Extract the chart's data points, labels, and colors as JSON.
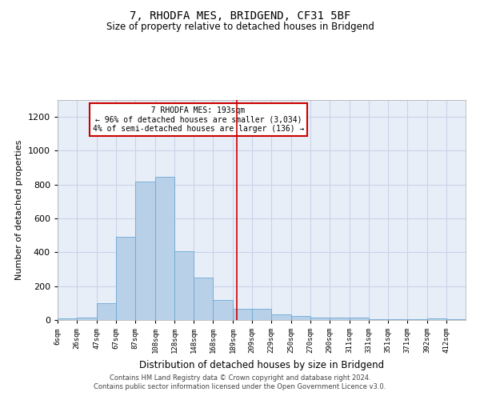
{
  "title": "7, RHODFA MES, BRIDGEND, CF31 5BF",
  "subtitle": "Size of property relative to detached houses in Bridgend",
  "xlabel": "Distribution of detached houses by size in Bridgend",
  "ylabel": "Number of detached properties",
  "footer_line1": "Contains HM Land Registry data © Crown copyright and database right 2024.",
  "footer_line2": "Contains public sector information licensed under the Open Government Licence v3.0.",
  "annotation_line1": "  7 RHODFA MES: 193sqm  ",
  "annotation_line2": "← 96% of detached houses are smaller (3,034)",
  "annotation_line3": "4% of semi-detached houses are larger (136) →",
  "bar_color": "#b8d0e8",
  "bar_edge_color": "#6aaad4",
  "grid_color": "#c8d4e8",
  "background_color": "#e8eef8",
  "vline_x": 193,
  "vline_color": "#cc0000",
  "annotation_box_edgecolor": "#cc0000",
  "categories": [
    "6sqm",
    "26sqm",
    "47sqm",
    "67sqm",
    "87sqm",
    "108sqm",
    "128sqm",
    "148sqm",
    "168sqm",
    "189sqm",
    "209sqm",
    "229sqm",
    "250sqm",
    "270sqm",
    "290sqm",
    "311sqm",
    "331sqm",
    "351sqm",
    "371sqm",
    "392sqm",
    "412sqm"
  ],
  "bin_edges": [
    6,
    26,
    47,
    67,
    87,
    108,
    128,
    148,
    168,
    189,
    209,
    229,
    250,
    270,
    290,
    311,
    331,
    351,
    371,
    392,
    412,
    432
  ],
  "values": [
    8,
    12,
    100,
    490,
    820,
    845,
    405,
    250,
    120,
    65,
    65,
    32,
    22,
    15,
    15,
    12,
    5,
    5,
    5,
    10,
    5
  ],
  "ylim": [
    0,
    1300
  ],
  "yticks": [
    0,
    200,
    400,
    600,
    800,
    1000,
    1200
  ],
  "figsize": [
    6.0,
    5.0
  ],
  "dpi": 100
}
